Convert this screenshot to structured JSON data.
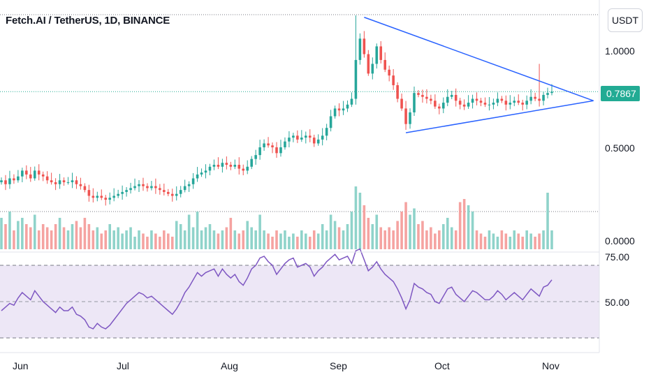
{
  "header": {
    "symbol_title": "Fetch.AI / TetherUS, 1D, BINANCE"
  },
  "price_axis": {
    "currency_button": "USDT",
    "ticks": [
      "1.0000",
      "0.5000",
      "0.0000"
    ],
    "last_price": "0.7867"
  },
  "rsi_axis": {
    "ticks": [
      "75.00",
      "50.00"
    ]
  },
  "time_axis": {
    "labels": [
      "Jun",
      "Jul",
      "Aug",
      "Sep",
      "Oct",
      "Nov"
    ]
  },
  "colors": {
    "up": "#26a69a",
    "down": "#ef5350",
    "vol_up": "#8fd3ca",
    "vol_down": "#f5a3a1",
    "trendline": "#2962ff",
    "rsi_line": "#7e57c2",
    "rsi_band": "#ede7f6",
    "last_price": "#22ab94"
  },
  "chart_data": {
    "type": "candlestick",
    "title": "Fetch.AI / TetherUS, 1D, BINANCE",
    "price_unit": "USDT",
    "price_range": [
      0,
      1.2
    ],
    "last_price": 0.7867,
    "candles_close": [
      0.33,
      0.31,
      0.34,
      0.33,
      0.35,
      0.38,
      0.36,
      0.34,
      0.38,
      0.36,
      0.35,
      0.33,
      0.32,
      0.31,
      0.33,
      0.32,
      0.32,
      0.33,
      0.31,
      0.3,
      0.28,
      0.25,
      0.24,
      0.25,
      0.24,
      0.23,
      0.24,
      0.25,
      0.26,
      0.27,
      0.28,
      0.29,
      0.3,
      0.31,
      0.3,
      0.29,
      0.3,
      0.29,
      0.28,
      0.27,
      0.26,
      0.25,
      0.26,
      0.28,
      0.3,
      0.31,
      0.34,
      0.36,
      0.37,
      0.38,
      0.4,
      0.41,
      0.4,
      0.42,
      0.41,
      0.4,
      0.41,
      0.39,
      0.38,
      0.4,
      0.44,
      0.46,
      0.5,
      0.52,
      0.51,
      0.5,
      0.47,
      0.5,
      0.53,
      0.55,
      0.56,
      0.54,
      0.55,
      0.56,
      0.55,
      0.52,
      0.54,
      0.56,
      0.6,
      0.66,
      0.7,
      0.69,
      0.7,
      0.72,
      0.75,
      0.95,
      1.06,
      0.98,
      0.88,
      0.93,
      1.02,
      0.95,
      0.9,
      0.87,
      0.82,
      0.75,
      0.7,
      0.62,
      0.68,
      0.78,
      0.77,
      0.76,
      0.75,
      0.74,
      0.71,
      0.7,
      0.73,
      0.76,
      0.77,
      0.74,
      0.72,
      0.71,
      0.73,
      0.75,
      0.74,
      0.73,
      0.72,
      0.72,
      0.73,
      0.75,
      0.74,
      0.72,
      0.73,
      0.74,
      0.73,
      0.72,
      0.74,
      0.76,
      0.75,
      0.74,
      0.77,
      0.78,
      0.7867
    ],
    "volume_relative": [
      0.5,
      0.4,
      0.6,
      0.3,
      0.45,
      0.5,
      0.4,
      0.35,
      0.55,
      0.3,
      0.4,
      0.35,
      0.3,
      0.4,
      0.5,
      0.35,
      0.3,
      0.4,
      0.45,
      0.35,
      0.5,
      0.4,
      0.3,
      0.35,
      0.25,
      0.3,
      0.4,
      0.3,
      0.35,
      0.25,
      0.3,
      0.35,
      0.2,
      0.3,
      0.25,
      0.2,
      0.3,
      0.25,
      0.2,
      0.3,
      0.25,
      0.2,
      0.45,
      0.4,
      0.3,
      0.55,
      0.35,
      0.6,
      0.3,
      0.35,
      0.4,
      0.3,
      0.25,
      0.3,
      0.35,
      0.5,
      0.3,
      0.25,
      0.3,
      0.45,
      0.35,
      0.3,
      0.55,
      0.3,
      0.25,
      0.2,
      0.3,
      0.25,
      0.3,
      0.2,
      0.25,
      0.2,
      0.3,
      0.25,
      0.2,
      0.3,
      0.25,
      0.4,
      0.3,
      0.55,
      0.45,
      0.35,
      0.3,
      0.4,
      0.6,
      1.0,
      0.9,
      0.7,
      0.5,
      0.4,
      0.55,
      0.35,
      0.3,
      0.35,
      0.3,
      0.45,
      0.6,
      0.75,
      0.55,
      0.65,
      0.4,
      0.45,
      0.3,
      0.35,
      0.25,
      0.3,
      0.4,
      0.5,
      0.35,
      0.3,
      0.75,
      0.8,
      0.7,
      0.6,
      0.3,
      0.25,
      0.2,
      0.3,
      0.25,
      0.2,
      0.3,
      0.25,
      0.2,
      0.3,
      0.25,
      0.2,
      0.3,
      0.25,
      0.2,
      0.25,
      0.3,
      0.9,
      0.3
    ],
    "rsi": {
      "range": [
        25,
        85
      ],
      "upper_band": 70,
      "lower_band": 30,
      "midline": 50,
      "values": [
        45,
        47,
        49,
        48,
        52,
        55,
        53,
        51,
        56,
        53,
        50,
        48,
        46,
        44,
        47,
        45,
        45,
        47,
        43,
        42,
        40,
        36,
        35,
        38,
        36,
        35,
        37,
        40,
        43,
        46,
        49,
        51,
        53,
        55,
        54,
        52,
        53,
        51,
        49,
        47,
        45,
        43,
        46,
        50,
        55,
        58,
        62,
        66,
        64,
        66,
        67,
        68,
        64,
        68,
        65,
        63,
        65,
        61,
        59,
        63,
        68,
        70,
        74,
        75,
        72,
        70,
        65,
        68,
        71,
        73,
        74,
        69,
        70,
        71,
        69,
        64,
        67,
        69,
        72,
        74,
        76,
        73,
        74,
        75,
        71,
        78,
        79,
        73,
        67,
        69,
        72,
        68,
        65,
        63,
        61,
        57,
        52,
        46,
        51,
        60,
        58,
        57,
        55,
        54,
        50,
        49,
        53,
        57,
        58,
        54,
        52,
        50,
        53,
        56,
        55,
        53,
        51,
        51,
        53,
        56,
        54,
        51,
        53,
        55,
        53,
        51,
        54,
        57,
        55,
        53,
        58,
        59,
        62
      ]
    },
    "triangle": {
      "upper": [
        [
          87,
          1.17
        ],
        [
          142,
          0.74
        ]
      ],
      "lower": [
        [
          97,
          0.575
        ],
        [
          142,
          0.74
        ]
      ]
    },
    "x_ticks": [
      "Jun",
      "Jul",
      "Aug",
      "Sep",
      "Oct",
      "Nov"
    ],
    "price_ticks": [
      1.0,
      0.5,
      0.0
    ],
    "rsi_ticks": [
      75,
      50
    ]
  }
}
